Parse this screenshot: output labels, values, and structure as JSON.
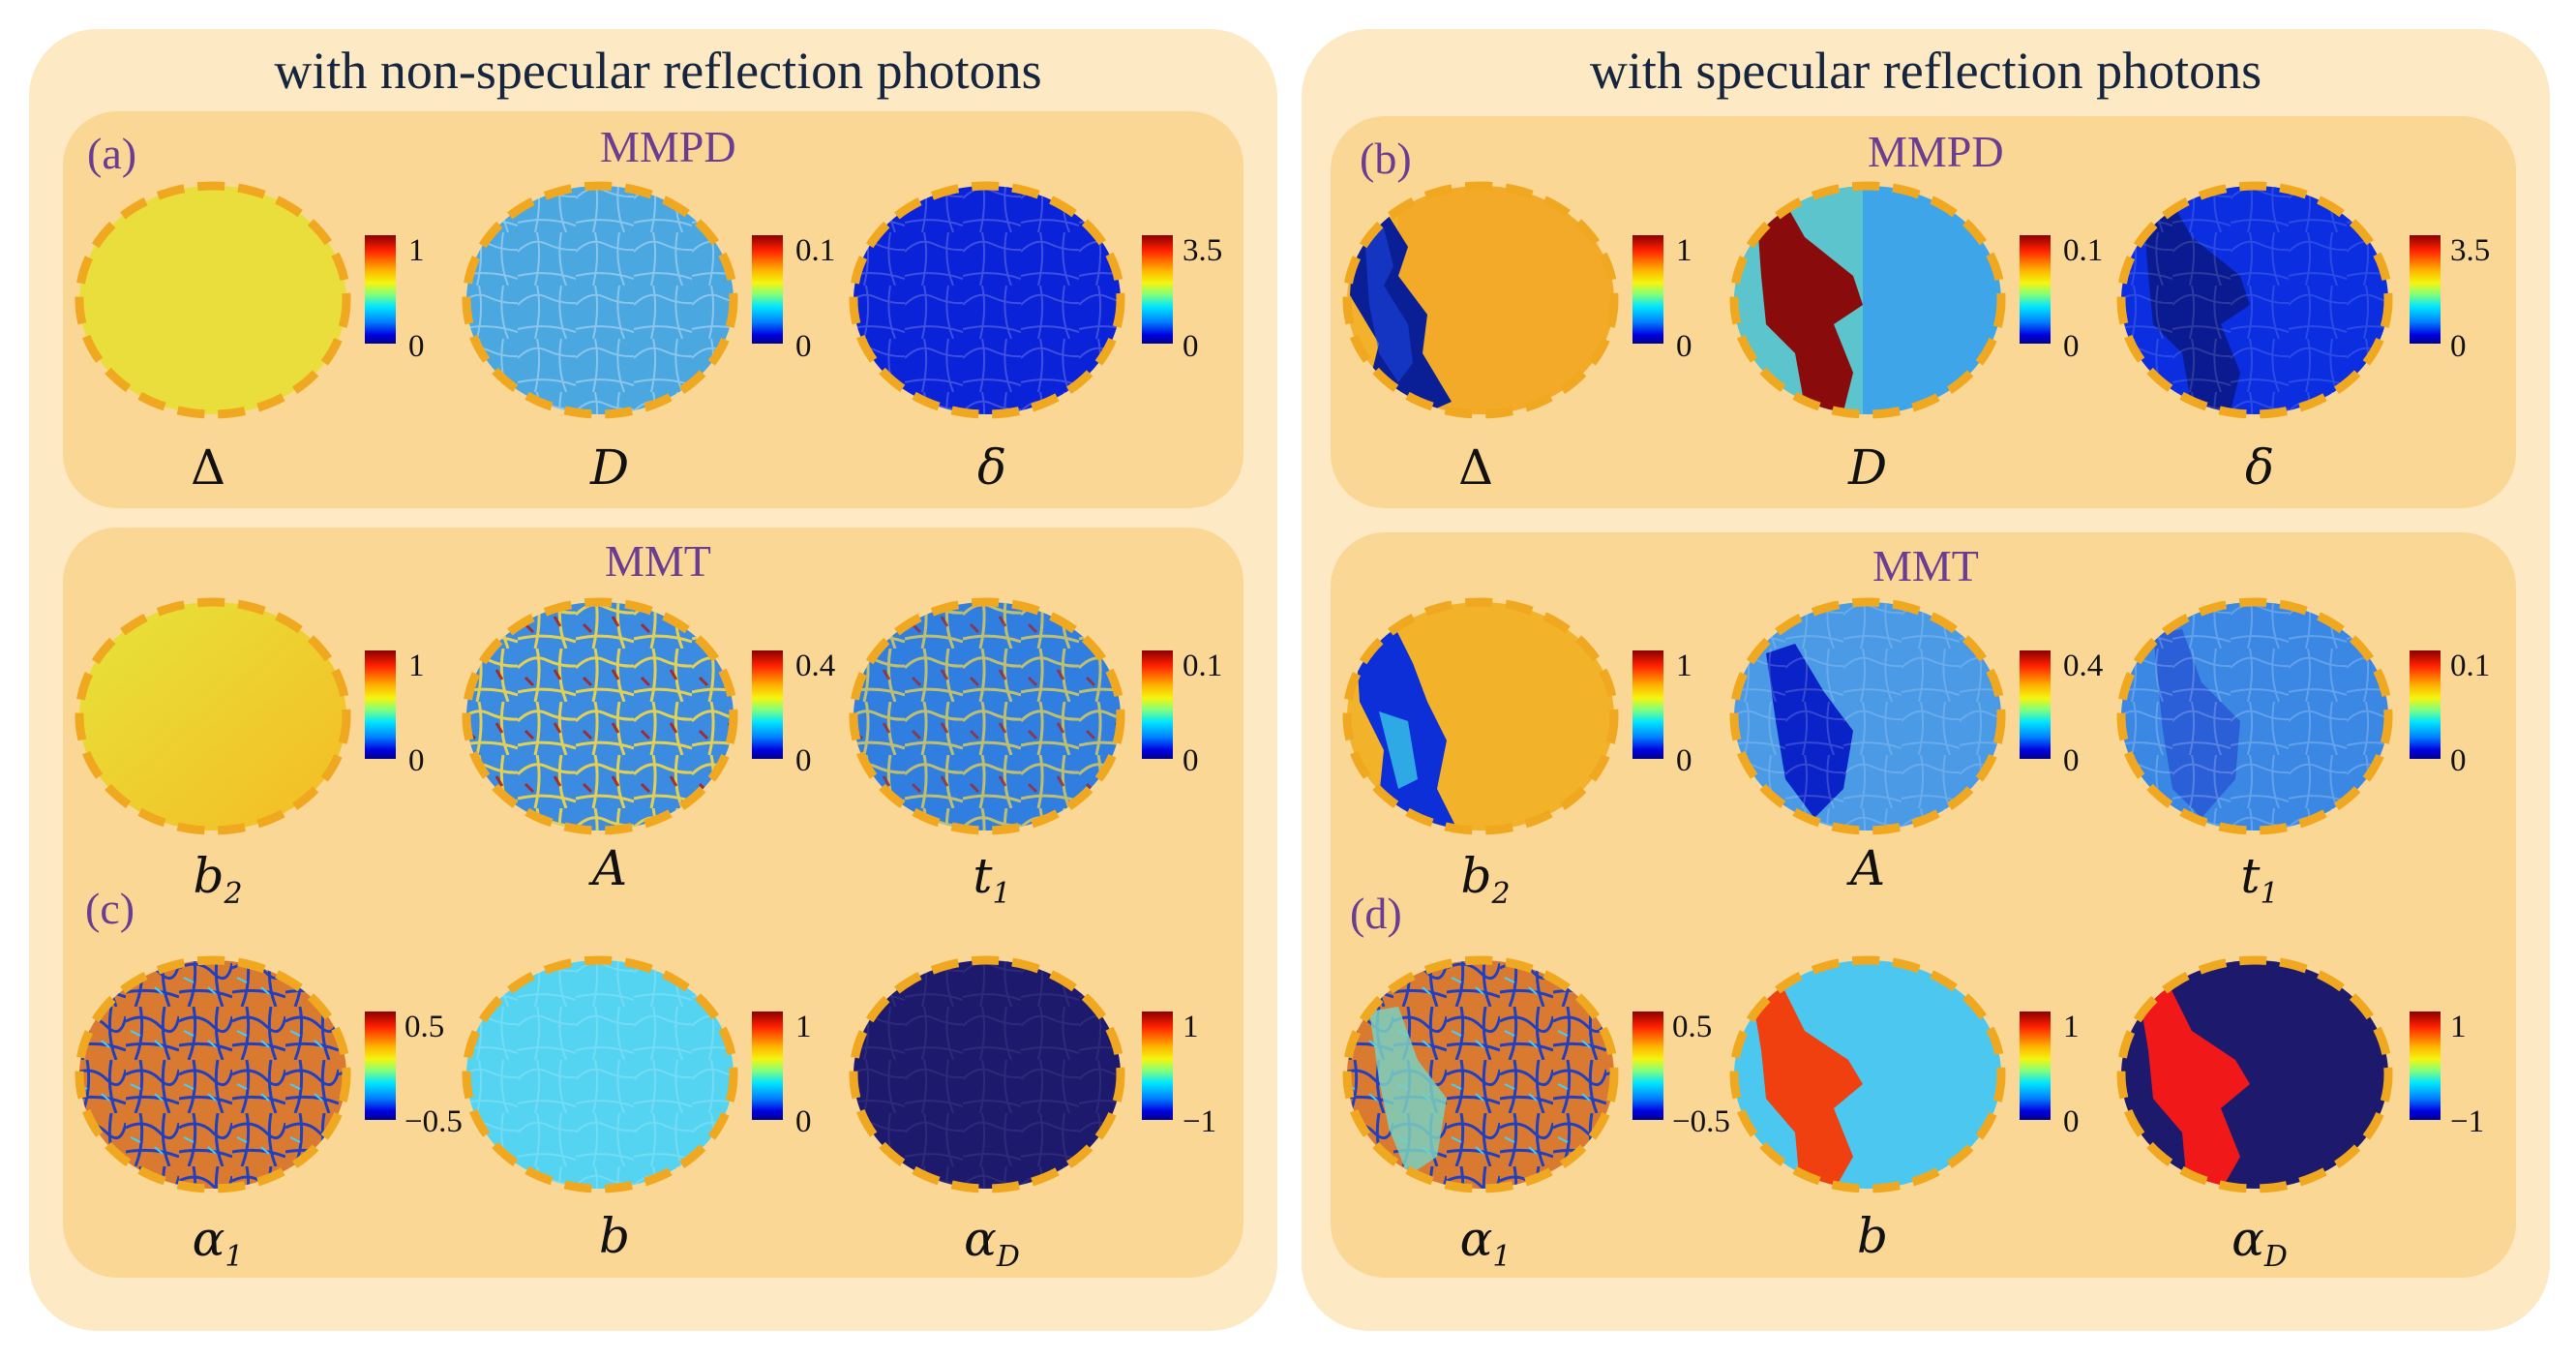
{
  "left_title": "with non-specular reflection photons",
  "right_title": "with specular reflection photons",
  "sections": {
    "mmpd": "MMPD",
    "mmt": "MMT"
  },
  "panel_labels": {
    "a": "(a)",
    "b": "(b)",
    "c": "(c)",
    "d": "(d)"
  },
  "symbols": {
    "Delta": "Δ",
    "D": "D",
    "delta": "δ",
    "b2": "b",
    "b2_sub": "2",
    "A": "A",
    "t1": "t",
    "t1_sub": "1",
    "alpha1": "α",
    "alpha1_sub": "1",
    "b": "b",
    "alphaD": "α",
    "alphaD_sub": "D"
  },
  "colorbars": {
    "delta_cap": {
      "max": "1",
      "min": "0"
    },
    "D": {
      "max": "0.1",
      "min": "0"
    },
    "delta": {
      "max": "3.5",
      "min": "0"
    },
    "b2": {
      "max": "1",
      "min": "0"
    },
    "A": {
      "max": "0.4",
      "min": "0"
    },
    "t1": {
      "max": "0.1",
      "min": "0"
    },
    "alpha1": {
      "max": "0.5",
      "min": "−0.5"
    },
    "b": {
      "max": "1",
      "min": "0"
    },
    "alphaD": {
      "max": "1",
      "min": "−1"
    }
  }
}
